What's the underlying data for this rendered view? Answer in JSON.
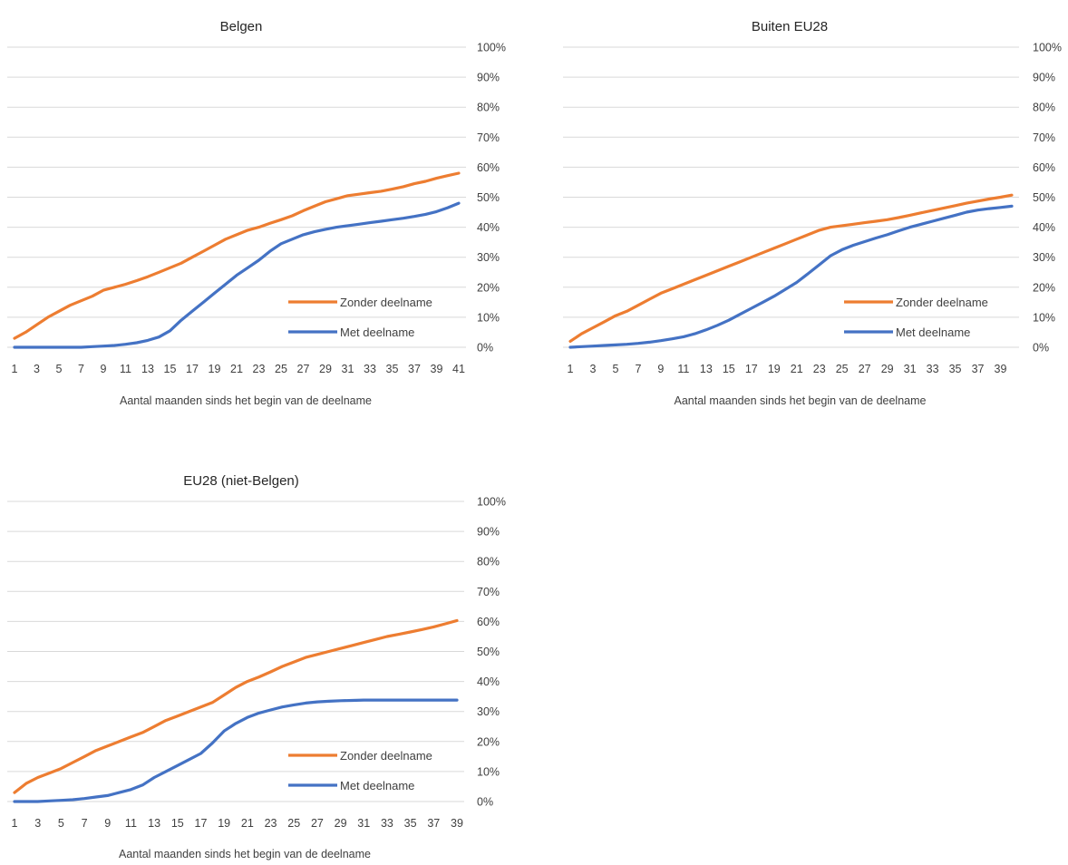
{
  "colors": {
    "zonder": "#ED7D31",
    "met": "#4472C4",
    "grid": "#D9D9D9"
  },
  "chart_data": [
    {
      "type": "line",
      "title": "Belgen",
      "xlabel": "Aantal maanden sinds het begin van de deelname",
      "ylabel": "",
      "ylim": [
        0,
        1
      ],
      "y_ticks": [
        "0%",
        "10%",
        "20%",
        "30%",
        "40%",
        "50%",
        "60%",
        "70%",
        "80%",
        "90%",
        "100%"
      ],
      "x_ticks": [
        "1",
        "3",
        "5",
        "7",
        "9",
        "11",
        "13",
        "15",
        "17",
        "19",
        "21",
        "23",
        "25",
        "27",
        "29",
        "31",
        "33",
        "35",
        "37",
        "39",
        "41"
      ],
      "x_count": 41,
      "legend": "right-bottom",
      "series": [
        {
          "name": "Zonder deelname",
          "color": "#ED7D31",
          "values": [
            0.03,
            0.05,
            0.075,
            0.1,
            0.12,
            0.14,
            0.155,
            0.17,
            0.19,
            0.2,
            0.21,
            0.222,
            0.235,
            0.25,
            0.265,
            0.28,
            0.3,
            0.32,
            0.34,
            0.36,
            0.375,
            0.39,
            0.4,
            0.413,
            0.425,
            0.438,
            0.455,
            0.47,
            0.485,
            0.495,
            0.505,
            0.51,
            0.515,
            0.52,
            0.527,
            0.535,
            0.545,
            0.553,
            0.563,
            0.572,
            0.58
          ]
        },
        {
          "name": "Met deelname",
          "color": "#4472C4",
          "values": [
            0,
            0,
            0,
            0,
            0,
            0,
            0,
            0.002,
            0.004,
            0.006,
            0.01,
            0.015,
            0.023,
            0.034,
            0.055,
            0.09,
            0.12,
            0.15,
            0.18,
            0.21,
            0.24,
            0.265,
            0.29,
            0.32,
            0.345,
            0.36,
            0.375,
            0.385,
            0.393,
            0.4,
            0.405,
            0.41,
            0.415,
            0.42,
            0.425,
            0.43,
            0.436,
            0.443,
            0.452,
            0.465,
            0.48
          ]
        }
      ]
    },
    {
      "type": "line",
      "title": "Buiten EU28",
      "xlabel": "Aantal maanden sinds het begin van de deelname",
      "ylabel": "",
      "ylim": [
        0,
        1
      ],
      "y_ticks": [
        "0%",
        "10%",
        "20%",
        "30%",
        "40%",
        "50%",
        "60%",
        "70%",
        "80%",
        "90%",
        "100%"
      ],
      "x_ticks": [
        "1",
        "3",
        "5",
        "7",
        "9",
        "11",
        "13",
        "15",
        "17",
        "19",
        "21",
        "23",
        "25",
        "27",
        "29",
        "31",
        "33",
        "35",
        "37",
        "39"
      ],
      "x_count": 40,
      "legend": "right-bottom",
      "series": [
        {
          "name": "Zonder deelname",
          "color": "#ED7D31",
          "values": [
            0.02,
            0.045,
            0.065,
            0.085,
            0.105,
            0.12,
            0.14,
            0.16,
            0.18,
            0.195,
            0.21,
            0.225,
            0.24,
            0.255,
            0.27,
            0.285,
            0.3,
            0.315,
            0.33,
            0.345,
            0.36,
            0.375,
            0.39,
            0.4,
            0.405,
            0.41,
            0.415,
            0.42,
            0.425,
            0.432,
            0.44,
            0.448,
            0.456,
            0.464,
            0.472,
            0.48,
            0.487,
            0.494,
            0.5,
            0.507
          ]
        },
        {
          "name": "Met deelname",
          "color": "#4472C4",
          "values": [
            0,
            0.002,
            0.004,
            0.006,
            0.008,
            0.01,
            0.013,
            0.017,
            0.022,
            0.028,
            0.035,
            0.045,
            0.058,
            0.073,
            0.09,
            0.11,
            0.13,
            0.15,
            0.17,
            0.193,
            0.216,
            0.245,
            0.275,
            0.305,
            0.325,
            0.34,
            0.352,
            0.364,
            0.375,
            0.388,
            0.4,
            0.41,
            0.42,
            0.43,
            0.44,
            0.45,
            0.457,
            0.462,
            0.466,
            0.47
          ]
        }
      ]
    },
    {
      "type": "line",
      "title": "EU28 (niet-Belgen)",
      "xlabel": "Aantal maanden sinds het begin van de deelname",
      "ylabel": "",
      "ylim": [
        0,
        1
      ],
      "y_ticks": [
        "0%",
        "10%",
        "20%",
        "30%",
        "40%",
        "50%",
        "60%",
        "70%",
        "80%",
        "90%",
        "100%"
      ],
      "x_ticks": [
        "1",
        "3",
        "5",
        "7",
        "9",
        "11",
        "13",
        "15",
        "17",
        "19",
        "21",
        "23",
        "25",
        "27",
        "29",
        "31",
        "33",
        "35",
        "37",
        "39"
      ],
      "x_count": 39,
      "legend": "right-bottom",
      "series": [
        {
          "name": "Zonder deelname",
          "color": "#ED7D31",
          "values": [
            0.03,
            0.06,
            0.08,
            0.095,
            0.11,
            0.13,
            0.15,
            0.17,
            0.185,
            0.2,
            0.215,
            0.23,
            0.25,
            0.27,
            0.285,
            0.3,
            0.315,
            0.33,
            0.355,
            0.38,
            0.4,
            0.415,
            0.432,
            0.45,
            0.465,
            0.48,
            0.49,
            0.5,
            0.51,
            0.52,
            0.53,
            0.54,
            0.55,
            0.557,
            0.565,
            0.573,
            0.582,
            0.592,
            0.603
          ]
        },
        {
          "name": "Met deelname",
          "color": "#4472C4",
          "values": [
            0,
            0,
            0,
            0.002,
            0.004,
            0.006,
            0.01,
            0.015,
            0.02,
            0.03,
            0.04,
            0.055,
            0.08,
            0.1,
            0.12,
            0.14,
            0.16,
            0.195,
            0.235,
            0.26,
            0.28,
            0.295,
            0.305,
            0.315,
            0.322,
            0.328,
            0.332,
            0.334,
            0.336,
            0.337,
            0.338,
            0.338,
            0.338,
            0.338,
            0.338,
            0.338,
            0.338,
            0.338,
            0.338
          ]
        }
      ]
    }
  ]
}
